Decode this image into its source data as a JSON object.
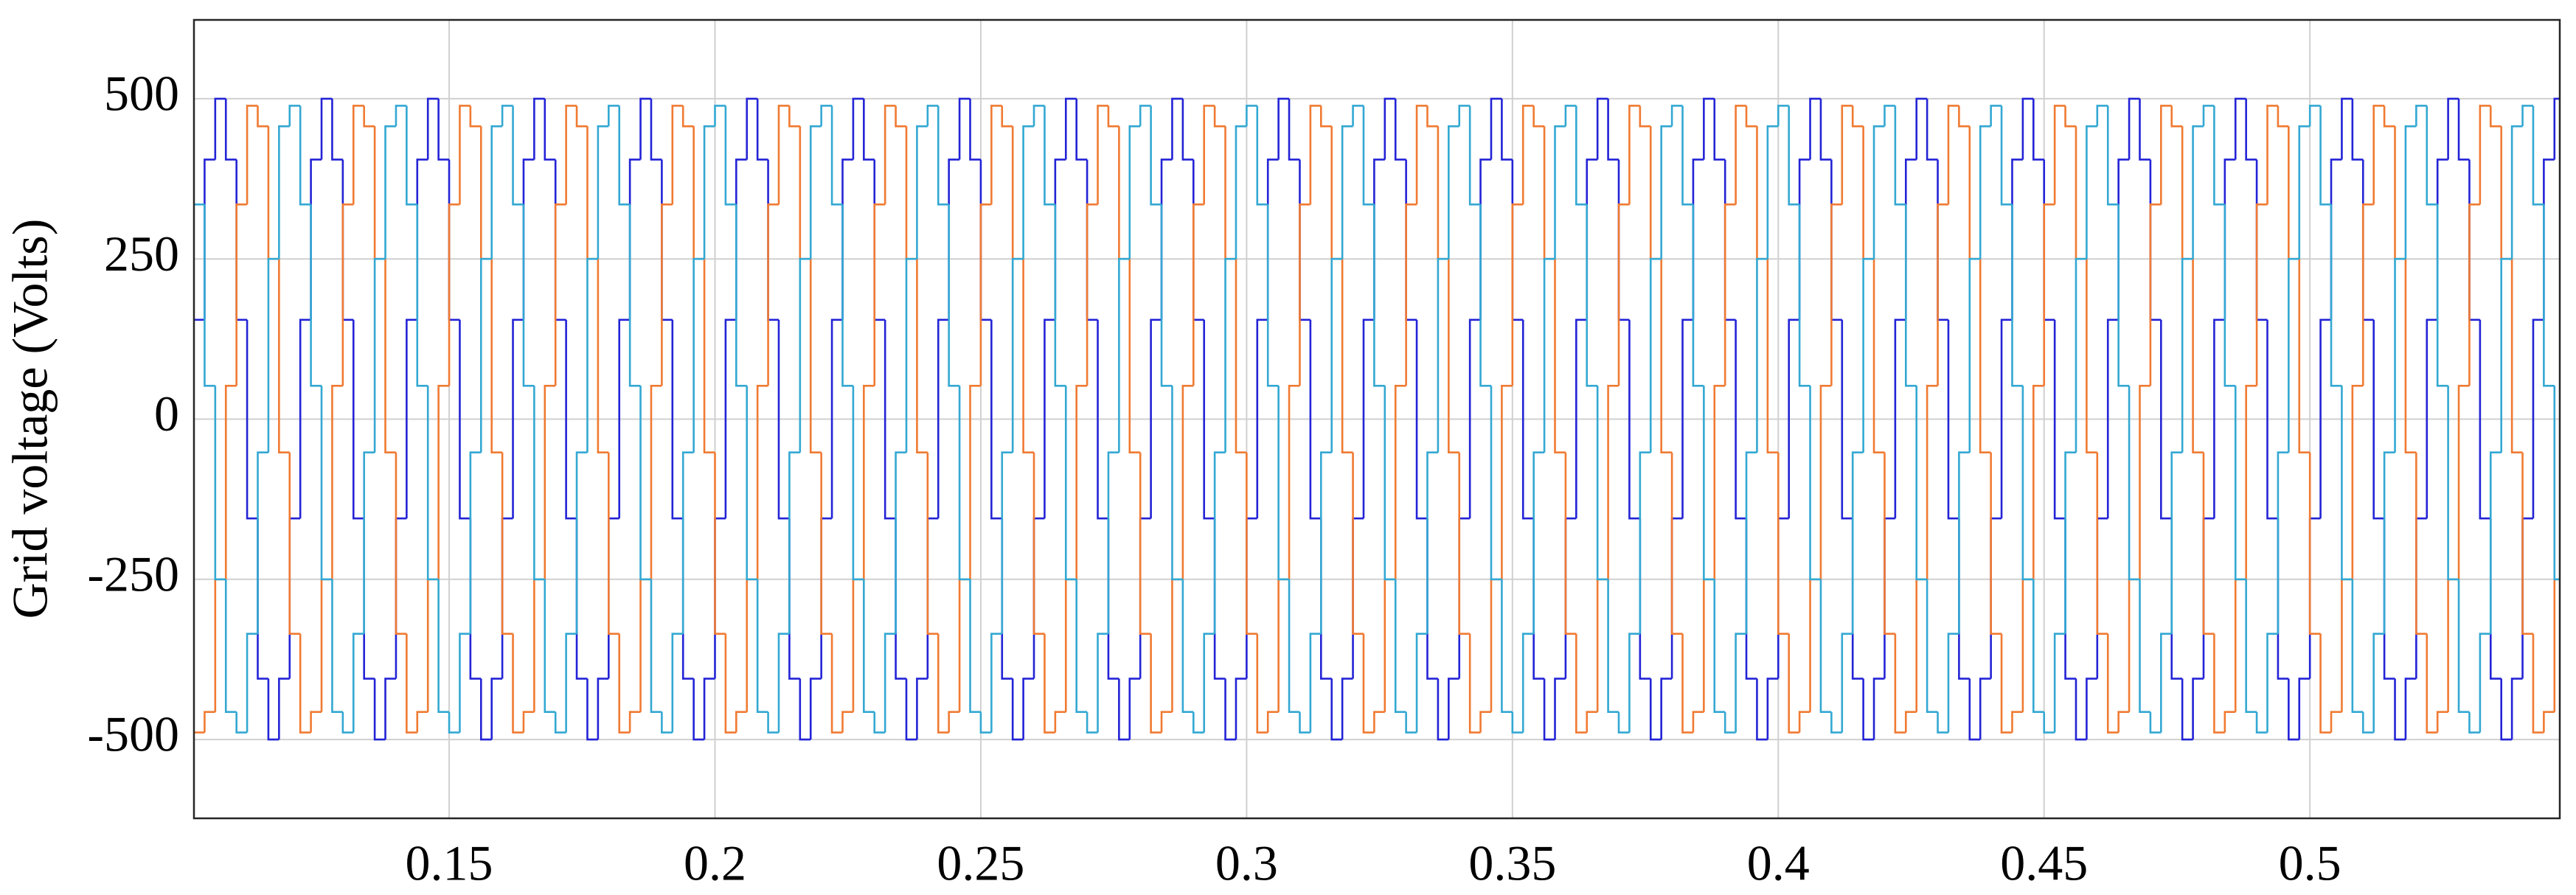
{
  "chart_data": {
    "type": "step",
    "ylabel": "Grid voltage (Volts)",
    "xlim": [
      0.102,
      0.547
    ],
    "ylim": [
      -623,
      623
    ],
    "xticks": [
      0.15,
      0.2,
      0.25,
      0.3,
      0.35,
      0.4,
      0.45,
      0.5
    ],
    "yticks": [
      500,
      250,
      0,
      -250,
      -500
    ],
    "grid": true,
    "x": [
      0.102,
      0.104,
      0.106,
      0.108,
      0.11,
      0.112,
      0.114,
      0.116,
      0.118,
      0.12,
      0.122,
      0.124,
      0.126,
      0.128,
      0.13,
      0.132,
      0.134,
      0.136,
      0.138,
      0.14,
      0.142,
      0.144,
      0.146,
      0.148,
      0.15,
      0.152,
      0.154,
      0.156,
      0.158,
      0.16,
      0.162,
      0.164,
      0.166,
      0.168,
      0.17,
      0.172,
      0.174,
      0.176,
      0.178,
      0.18,
      0.182,
      0.184,
      0.186,
      0.188,
      0.19,
      0.192,
      0.194,
      0.196,
      0.198,
      0.2,
      0.202,
      0.204,
      0.206,
      0.208,
      0.21,
      0.212,
      0.214,
      0.216,
      0.218,
      0.22,
      0.222,
      0.224,
      0.226,
      0.228,
      0.23,
      0.232,
      0.234,
      0.236,
      0.238,
      0.24,
      0.242,
      0.244,
      0.246,
      0.248,
      0.25,
      0.252,
      0.254,
      0.256,
      0.258,
      0.26,
      0.262,
      0.264,
      0.266,
      0.268,
      0.27,
      0.272,
      0.274,
      0.276,
      0.278,
      0.28,
      0.282,
      0.284,
      0.286,
      0.288,
      0.29,
      0.292,
      0.294,
      0.296,
      0.298,
      0.3,
      0.302,
      0.304,
      0.306,
      0.308,
      0.31,
      0.312,
      0.314,
      0.316,
      0.318,
      0.32,
      0.322,
      0.324,
      0.326,
      0.328,
      0.33,
      0.332,
      0.334,
      0.336,
      0.338,
      0.34,
      0.342,
      0.344,
      0.346,
      0.348,
      0.35,
      0.352,
      0.354,
      0.356,
      0.358,
      0.36,
      0.362,
      0.364,
      0.366,
      0.368,
      0.37,
      0.372,
      0.374,
      0.376,
      0.378,
      0.38,
      0.382,
      0.384,
      0.386,
      0.388,
      0.39,
      0.392,
      0.394,
      0.396,
      0.398,
      0.4,
      0.402,
      0.404,
      0.406,
      0.408,
      0.41,
      0.412,
      0.414,
      0.416,
      0.418,
      0.42,
      0.422,
      0.424,
      0.426,
      0.428,
      0.43,
      0.432,
      0.434,
      0.436,
      0.438,
      0.44,
      0.442,
      0.444,
      0.446,
      0.448,
      0.45,
      0.452,
      0.454,
      0.456,
      0.458,
      0.46,
      0.462,
      0.464,
      0.466,
      0.468,
      0.47,
      0.472,
      0.474,
      0.476,
      0.478,
      0.48,
      0.482,
      0.484,
      0.486,
      0.488,
      0.49,
      0.492,
      0.494,
      0.496,
      0.498,
      0.5,
      0.502,
      0.504,
      0.506,
      0.508,
      0.51,
      0.512,
      0.514,
      0.516,
      0.518,
      0.52,
      0.522,
      0.524,
      0.526,
      0.528,
      0.53,
      0.532,
      0.534,
      0.536,
      0.538,
      0.54,
      0.542,
      0.544,
      0.546
    ],
    "series": [
      {
        "color": "#2323d6",
        "values": [
          155,
          405,
          500,
          405,
          155,
          -155,
          -405,
          -500,
          -405,
          -155,
          155,
          405,
          500,
          405,
          155,
          -155,
          -405,
          -500,
          -405,
          -155,
          155,
          405,
          500,
          405,
          155,
          -155,
          -405,
          -500,
          -405,
          -155,
          155,
          405,
          500,
          405,
          155,
          -155,
          -405,
          -500,
          -405,
          -155,
          155,
          405,
          500,
          405,
          155,
          -155,
          -405,
          -500,
          -405,
          -155,
          155,
          405,
          500,
          405,
          155,
          -155,
          -405,
          -500,
          -405,
          -155,
          155,
          405,
          500,
          405,
          155,
          -155,
          -405,
          -500,
          -405,
          -155,
          155,
          405,
          500,
          405,
          155,
          -155,
          -405,
          -500,
          -405,
          -155,
          155,
          405,
          500,
          405,
          155,
          -155,
          -405,
          -500,
          -405,
          -155,
          155,
          405,
          500,
          405,
          155,
          -155,
          -405,
          -500,
          -405,
          -155,
          155,
          405,
          500,
          405,
          155,
          -155,
          -405,
          -500,
          -405,
          -155,
          155,
          405,
          500,
          405,
          155,
          -155,
          -405,
          -500,
          -405,
          -155,
          155,
          405,
          500,
          405,
          155,
          -155,
          -405,
          -500,
          -405,
          -155,
          155,
          405,
          500,
          405,
          155,
          -155,
          -405,
          -500,
          -405,
          -155,
          155,
          405,
          500,
          405,
          155,
          -155,
          -405,
          -500,
          -405,
          -155,
          155,
          405,
          500,
          405,
          155,
          -155,
          -405,
          -500,
          -405,
          -155,
          155,
          405,
          500,
          405,
          155,
          -155,
          -405,
          -500,
          -405,
          -155,
          155,
          405,
          500,
          405,
          155,
          -155,
          -405,
          -500,
          -405,
          -155,
          155,
          405,
          500,
          405,
          155,
          -155,
          -405,
          -500,
          -405,
          -155,
          155,
          405,
          500,
          405,
          155,
          -155,
          -405,
          -500,
          -405,
          -155,
          155,
          405,
          500,
          405,
          155,
          -155,
          -405,
          -500,
          -405,
          -155,
          155,
          405,
          500,
          405,
          155,
          -155,
          -405,
          -500,
          -405,
          -155,
          155,
          405,
          500
        ]
      },
      {
        "color": "#f07a32",
        "values": [
          -489,
          -457,
          -250,
          52,
          335,
          489,
          457,
          250,
          -52,
          -335,
          -489,
          -457,
          -250,
          52,
          335,
          489,
          457,
          250,
          -52,
          -335,
          -489,
          -457,
          -250,
          52,
          335,
          489,
          457,
          250,
          -52,
          -335,
          -489,
          -457,
          -250,
          52,
          335,
          489,
          457,
          250,
          -52,
          -335,
          -489,
          -457,
          -250,
          52,
          335,
          489,
          457,
          250,
          -52,
          -335,
          -489,
          -457,
          -250,
          52,
          335,
          489,
          457,
          250,
          -52,
          -335,
          -489,
          -457,
          -250,
          52,
          335,
          489,
          457,
          250,
          -52,
          -335,
          -489,
          -457,
          -250,
          52,
          335,
          489,
          457,
          250,
          -52,
          -335,
          -489,
          -457,
          -250,
          52,
          335,
          489,
          457,
          250,
          -52,
          -335,
          -489,
          -457,
          -250,
          52,
          335,
          489,
          457,
          250,
          -52,
          -335,
          -489,
          -457,
          -250,
          52,
          335,
          489,
          457,
          250,
          -52,
          -335,
          -489,
          -457,
          -250,
          52,
          335,
          489,
          457,
          250,
          -52,
          -335,
          -489,
          -457,
          -250,
          52,
          335,
          489,
          457,
          250,
          -52,
          -335,
          -489,
          -457,
          -250,
          52,
          335,
          489,
          457,
          250,
          -52,
          -335,
          -489,
          -457,
          -250,
          52,
          335,
          489,
          457,
          250,
          -52,
          -335,
          -489,
          -457,
          -250,
          52,
          335,
          489,
          457,
          250,
          -52,
          -335,
          -489,
          -457,
          -250,
          52,
          335,
          489,
          457,
          250,
          -52,
          -335,
          -489,
          -457,
          -250,
          52,
          335,
          489,
          457,
          250,
          -52,
          -335,
          -489,
          -457,
          -250,
          52,
          335,
          489,
          457,
          250,
          -52,
          -335,
          -489,
          -457,
          -250,
          52,
          335,
          489,
          457,
          250,
          -52,
          -335,
          -489,
          -457,
          -250,
          52,
          335,
          489,
          457,
          250,
          -52,
          -335,
          -489,
          -457,
          -250,
          52,
          335,
          489,
          457,
          250,
          -52,
          -335,
          -489,
          -457,
          -250
        ]
      },
      {
        "color": "#33a8d2",
        "values": [
          335,
          52,
          -250,
          -457,
          -489,
          -335,
          -52,
          250,
          457,
          489,
          335,
          52,
          -250,
          -457,
          -489,
          -335,
          -52,
          250,
          457,
          489,
          335,
          52,
          -250,
          -457,
          -489,
          -335,
          -52,
          250,
          457,
          489,
          335,
          52,
          -250,
          -457,
          -489,
          -335,
          -52,
          250,
          457,
          489,
          335,
          52,
          -250,
          -457,
          -489,
          -335,
          -52,
          250,
          457,
          489,
          335,
          52,
          -250,
          -457,
          -489,
          -335,
          -52,
          250,
          457,
          489,
          335,
          52,
          -250,
          -457,
          -489,
          -335,
          -52,
          250,
          457,
          489,
          335,
          52,
          -250,
          -457,
          -489,
          -335,
          -52,
          250,
          457,
          489,
          335,
          52,
          -250,
          -457,
          -489,
          -335,
          -52,
          250,
          457,
          489,
          335,
          52,
          -250,
          -457,
          -489,
          -335,
          -52,
          250,
          457,
          489,
          335,
          52,
          -250,
          -457,
          -489,
          -335,
          -52,
          250,
          457,
          489,
          335,
          52,
          -250,
          -457,
          -489,
          -335,
          -52,
          250,
          457,
          489,
          335,
          52,
          -250,
          -457,
          -489,
          -335,
          -52,
          250,
          457,
          489,
          335,
          52,
          -250,
          -457,
          -489,
          -335,
          -52,
          250,
          457,
          489,
          335,
          52,
          -250,
          -457,
          -489,
          -335,
          -52,
          250,
          457,
          489,
          335,
          52,
          -250,
          -457,
          -489,
          -335,
          -52,
          250,
          457,
          489,
          335,
          52,
          -250,
          -457,
          -489,
          -335,
          -52,
          250,
          457,
          489,
          335,
          52,
          -250,
          -457,
          -489,
          -335,
          -52,
          250,
          457,
          489,
          335,
          52,
          -250,
          -457,
          -489,
          -335,
          -52,
          250,
          457,
          489,
          335,
          52,
          -250,
          -457,
          -489,
          -335,
          -52,
          250,
          457,
          489,
          335,
          52,
          -250,
          -457,
          -489,
          -335,
          -52,
          250,
          457,
          489,
          335,
          52,
          -250,
          -457,
          -489,
          -335,
          -52,
          250,
          457,
          489,
          335,
          52,
          -250
        ]
      }
    ]
  }
}
